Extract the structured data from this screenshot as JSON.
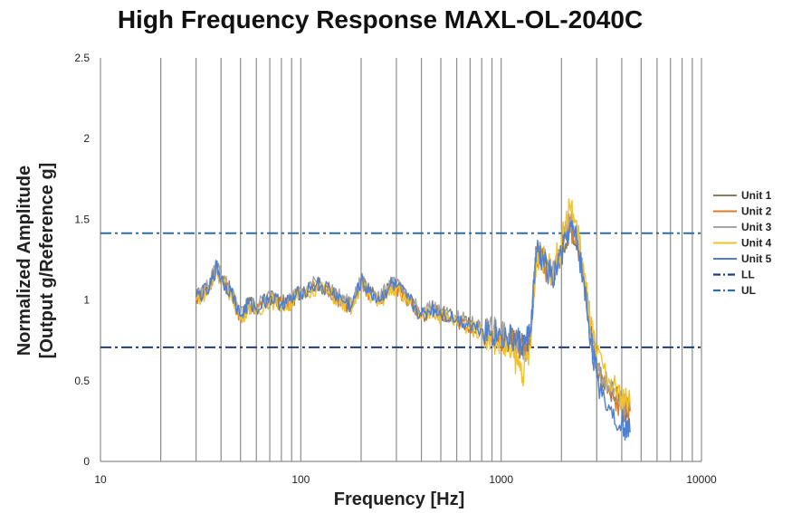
{
  "chart_data": {
    "type": "line",
    "title": "High Frequency Response MAXL-OL-2040C",
    "xlabel": "Frequency [Hz]",
    "ylabel": [
      "Normalized Amplitude",
      "[Output g/Reference g]"
    ],
    "x_scale": "log",
    "xlim": [
      10,
      10000
    ],
    "ylim": [
      0,
      2.5
    ],
    "x_ticks": [
      "10",
      "100",
      "1000",
      "10000"
    ],
    "y_ticks": [
      "0",
      "0.5",
      "1",
      "1.5",
      "2",
      "2.5"
    ],
    "grid": "vertical",
    "legend_position": "right",
    "colors": {
      "Unit 1": "#8b7d5e",
      "Unit 2": "#e07b25",
      "Unit 3": "#a5a5a5",
      "Unit 4": "#f2c12e",
      "Unit 5": "#4f7fcf",
      "LL": "#1f3b7a",
      "UL": "#2e6ea6",
      "grid": "#8c8c8c"
    },
    "x": [
      30,
      35,
      38,
      40,
      45,
      50,
      55,
      60,
      70,
      80,
      90,
      100,
      120,
      140,
      160,
      180,
      200,
      220,
      250,
      280,
      300,
      350,
      400,
      450,
      500,
      600,
      700,
      800,
      900,
      1000,
      1100,
      1200,
      1300,
      1400,
      1500,
      1600,
      1800,
      2000,
      2200,
      2400,
      2600,
      2800,
      3000,
      3500,
      4000,
      4400
    ],
    "series": [
      {
        "name": "Unit 1",
        "values": [
          1.02,
          1.08,
          1.22,
          1.14,
          1.05,
          0.9,
          0.98,
          0.95,
          1.02,
          0.98,
          1.0,
          1.05,
          1.1,
          1.06,
          1.0,
          0.96,
          1.12,
          1.05,
          1.0,
          1.1,
          1.08,
          1.0,
          0.9,
          0.95,
          0.92,
          0.88,
          0.85,
          0.82,
          0.8,
          0.78,
          0.76,
          0.75,
          0.7,
          0.78,
          1.3,
          1.25,
          1.15,
          1.3,
          1.48,
          1.38,
          1.1,
          0.8,
          0.6,
          0.42,
          0.35,
          0.32
        ]
      },
      {
        "name": "Unit 2",
        "values": [
          1.01,
          1.07,
          1.2,
          1.13,
          1.04,
          0.89,
          0.97,
          0.94,
          1.01,
          0.97,
          0.99,
          1.04,
          1.09,
          1.05,
          0.99,
          0.95,
          1.11,
          1.04,
          0.99,
          1.09,
          1.07,
          0.99,
          0.89,
          0.94,
          0.91,
          0.87,
          0.84,
          0.81,
          0.79,
          0.77,
          0.75,
          0.74,
          0.69,
          0.77,
          1.29,
          1.24,
          1.14,
          1.29,
          1.47,
          1.37,
          1.09,
          0.79,
          0.59,
          0.41,
          0.34,
          0.31
        ]
      },
      {
        "name": "Unit 3",
        "values": [
          1.03,
          1.09,
          1.23,
          1.15,
          1.06,
          0.91,
          0.99,
          0.96,
          1.03,
          0.99,
          1.01,
          1.06,
          1.11,
          1.07,
          1.01,
          0.97,
          1.13,
          1.06,
          1.01,
          1.11,
          1.09,
          1.01,
          0.91,
          0.96,
          0.93,
          0.89,
          0.86,
          0.83,
          0.81,
          0.79,
          0.77,
          0.76,
          0.68,
          0.76,
          1.31,
          1.26,
          1.16,
          1.31,
          1.5,
          1.4,
          1.11,
          0.81,
          0.61,
          0.43,
          0.36,
          0.33
        ]
      },
      {
        "name": "Unit 4",
        "values": [
          1.0,
          1.06,
          1.19,
          1.12,
          1.03,
          0.88,
          0.96,
          0.93,
          1.0,
          0.96,
          0.98,
          1.03,
          1.08,
          1.04,
          0.98,
          0.94,
          1.1,
          1.03,
          0.98,
          1.08,
          1.06,
          0.98,
          0.88,
          0.93,
          0.9,
          0.86,
          0.83,
          0.8,
          0.76,
          0.72,
          0.68,
          0.62,
          0.55,
          0.7,
          1.28,
          1.26,
          1.18,
          1.35,
          1.58,
          1.45,
          1.15,
          0.85,
          0.65,
          0.48,
          0.4,
          0.36
        ]
      },
      {
        "name": "Unit 5",
        "values": [
          1.02,
          1.07,
          1.21,
          1.13,
          1.05,
          0.9,
          0.98,
          0.95,
          1.02,
          0.98,
          1.0,
          1.05,
          1.1,
          1.06,
          1.0,
          0.96,
          1.12,
          1.05,
          1.0,
          1.1,
          1.08,
          1.0,
          0.9,
          0.95,
          0.92,
          0.88,
          0.85,
          0.82,
          0.8,
          0.78,
          0.76,
          0.75,
          0.72,
          0.8,
          1.3,
          1.25,
          1.12,
          1.28,
          1.45,
          1.36,
          1.08,
          0.76,
          0.52,
          0.32,
          0.25,
          0.18
        ]
      }
    ],
    "reference_lines": [
      {
        "name": "LL",
        "y": 0.707,
        "style": "dash-dot"
      },
      {
        "name": "UL",
        "y": 1.414,
        "style": "dash-dot"
      }
    ],
    "legend": [
      "Unit 1",
      "Unit 2",
      "Unit 3",
      "Unit 4",
      "Unit 5",
      "LL",
      "UL"
    ]
  }
}
